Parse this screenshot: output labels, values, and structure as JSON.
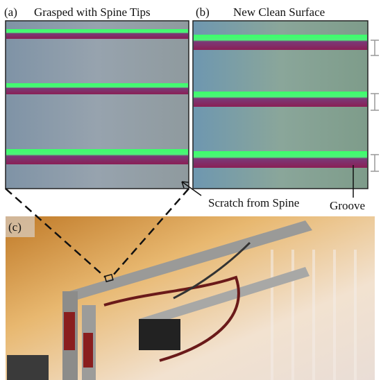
{
  "panels": [
    {
      "label": "(a)",
      "title": "Grasped with Spine Tips"
    },
    {
      "label": "(b)",
      "title": "New Clean Surface"
    },
    {
      "label": "(c)"
    }
  ],
  "annotations": {
    "scratch": "Scratch from Spine",
    "groove": "Groove"
  }
}
